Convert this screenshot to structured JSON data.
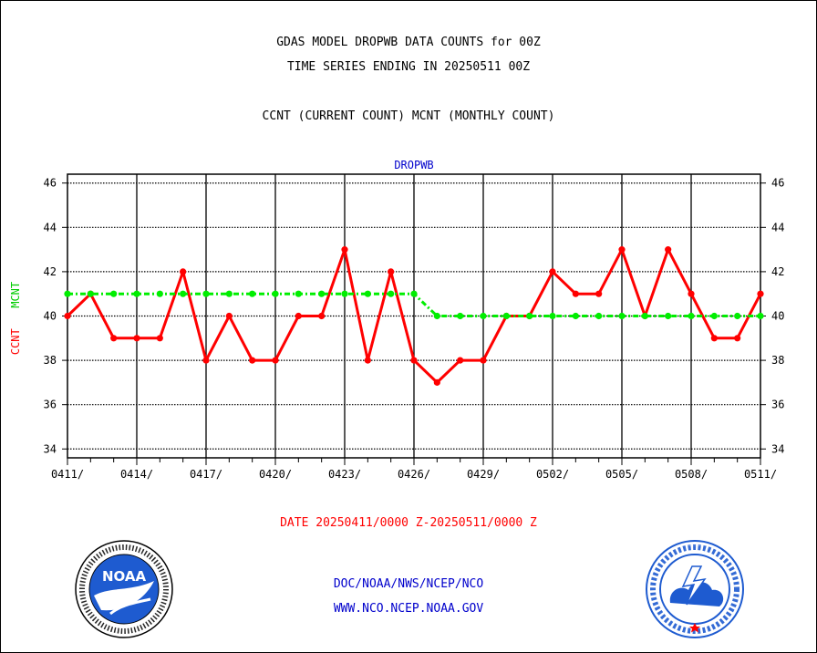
{
  "titles": {
    "line1": "GDAS MODEL DROPWB DATA COUNTS for 00Z",
    "line2": "TIME SERIES ENDING IN 20250511 00Z",
    "line3": "CCNT (CURRENT COUNT) MCNT (MONTHLY COUNT)"
  },
  "footer": {
    "date_range": "DATE 20250411/0000 Z-20250511/0000 Z",
    "org_path": "DOC/NOAA/NWS/NCEP/NCO",
    "website": "WWW.NCO.NCEP.NOAA.GOV"
  },
  "logos": {
    "left": "NOAA",
    "right": "NATIONAL WEATHER SERVICE"
  },
  "colors": {
    "ccnt": "#ff0000",
    "mcnt": "#00ee00",
    "accent_blue": "#0000cc"
  },
  "chart_data": {
    "type": "line",
    "title": "DROPWB",
    "ylabel_parts": [
      "CCNT",
      "MCNT"
    ],
    "ylim": [
      33.6,
      46.4
    ],
    "yticks": [
      34,
      36,
      38,
      40,
      42,
      44,
      46
    ],
    "xtick_labels": [
      "0411/",
      "0414/",
      "0417/",
      "0420/",
      "0423/",
      "0426/",
      "0429/",
      "0502/",
      "0505/",
      "0508/",
      "0511/"
    ],
    "x": [
      "0411",
      "0412",
      "0413",
      "0414",
      "0415",
      "0416",
      "0417",
      "0418",
      "0419",
      "0420",
      "0421",
      "0422",
      "0423",
      "0424",
      "0425",
      "0426",
      "0427",
      "0428",
      "0429",
      "0430",
      "0501",
      "0502",
      "0503",
      "0504",
      "0505",
      "0506",
      "0507",
      "0508",
      "0509",
      "0510",
      "0511"
    ],
    "grid": true,
    "series": [
      {
        "name": "CCNT",
        "color": "#ff0000",
        "values": [
          40,
          41,
          39,
          39,
          39,
          42,
          38,
          40,
          38,
          38,
          40,
          40,
          43,
          38,
          42,
          38,
          37,
          38,
          38,
          40,
          40,
          42,
          41,
          41,
          43,
          40,
          43,
          41,
          39,
          39,
          41
        ]
      },
      {
        "name": "MCNT",
        "color": "#00ee00",
        "values": [
          41,
          41,
          41,
          41,
          41,
          41,
          41,
          41,
          41,
          41,
          41,
          41,
          41,
          41,
          41,
          41,
          40,
          40,
          40,
          40,
          40,
          40,
          40,
          40,
          40,
          40,
          40,
          40,
          40,
          40,
          40
        ]
      }
    ]
  }
}
